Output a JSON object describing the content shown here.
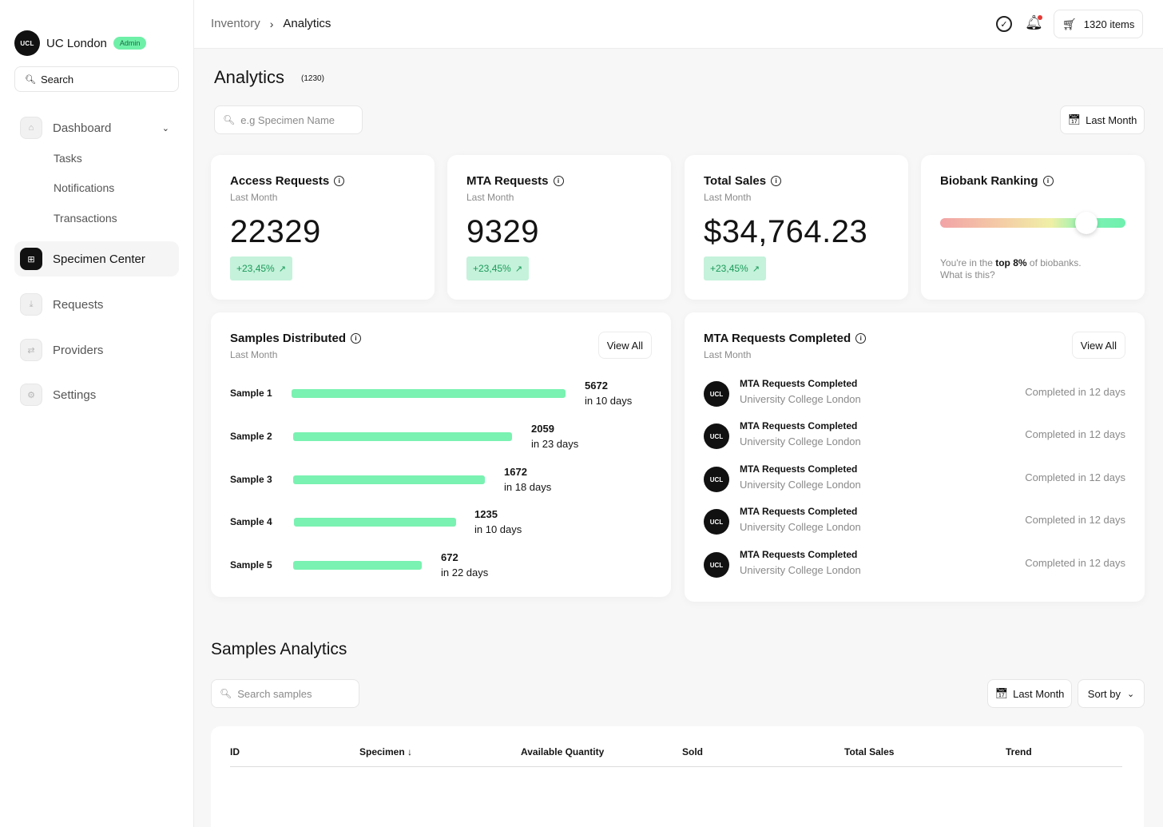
{
  "brand": {
    "logo_text": "UCL",
    "name": "UC London",
    "badge": "Admin"
  },
  "sidebar": {
    "search_label": "Search",
    "items": [
      {
        "label": "Dashboard",
        "icon": "home-icon"
      },
      {
        "label": "Specimen Center",
        "icon": "grid-icon"
      },
      {
        "label": "Requests",
        "icon": "download-icon"
      },
      {
        "label": "Providers",
        "icon": "swap-icon"
      },
      {
        "label": "Settings",
        "icon": "gear-icon"
      }
    ],
    "sub_items": [
      "Tasks",
      "Notifications",
      "Transactions"
    ]
  },
  "topbar": {
    "breadcrumb": [
      "Inventory",
      "Analytics"
    ],
    "cart_label": "1320 items"
  },
  "page": {
    "title": "Analytics",
    "count": "(1230)",
    "search_placeholder": "e.g Specimen Name",
    "date_filter": "Last Month"
  },
  "stats": [
    {
      "title": "Access Requests",
      "period": "Last Month",
      "value": "22329",
      "delta": "+23,45%"
    },
    {
      "title": "MTA Requests",
      "period": "Last Month",
      "value": "9329",
      "delta": "+23,45%"
    },
    {
      "title": "Total Sales",
      "period": "Last Month",
      "value": "$34,764.23",
      "delta": "+23,45%"
    }
  ],
  "ranking": {
    "title": "Biobank Ranking",
    "level_percent": 80,
    "text_prefix": "You're in the ",
    "text_bold": "top 8%",
    "text_suffix": " of biobanks.",
    "link": "What is this?"
  },
  "samples_distributed": {
    "title": "Samples Distributed",
    "period": "Last Month",
    "view_all": "View All",
    "rows": [
      {
        "label": "Sample 1",
        "value": "5672",
        "days": "in 10 days"
      },
      {
        "label": "Sample 2",
        "value": "2059",
        "days": "in 23 days"
      },
      {
        "label": "Sample 3",
        "value": "1672",
        "days": "in 18 days"
      },
      {
        "label": "Sample 4",
        "value": "1235",
        "days": "in 10 days"
      },
      {
        "label": "Sample 5",
        "value": "672",
        "days": "in 22 days"
      }
    ]
  },
  "mta_completed": {
    "title": "MTA Requests Completed",
    "period": "Last Month",
    "view_all": "View All",
    "rows": [
      {
        "title": "MTA Requests Completed",
        "org": "University College London",
        "status": "Completed in 12 days"
      },
      {
        "title": "MTA Requests Completed",
        "org": "University College London",
        "status": "Completed in 12 days"
      },
      {
        "title": "MTA Requests Completed",
        "org": "University College London",
        "status": "Completed in 12 days"
      },
      {
        "title": "MTA Requests Completed",
        "org": "University College London",
        "status": "Completed in 12 days"
      },
      {
        "title": "MTA Requests Completed",
        "org": "University College London",
        "status": "Completed in 12 days"
      }
    ]
  },
  "samples_analytics": {
    "title": "Samples Analytics",
    "search_placeholder": "Search samples",
    "date_filter": "Last Month",
    "sort_label": "Sort by",
    "columns": [
      "ID",
      "Specimen",
      "Available Quantity",
      "Sold",
      "Total Sales",
      "Trend"
    ]
  },
  "colors": {
    "accent_green": "#7af2b1",
    "badge_green": "#6ff0a8",
    "delta_bg": "#c4f2da",
    "delta_text": "#1c9a5b",
    "alert_red": "#e53935"
  }
}
